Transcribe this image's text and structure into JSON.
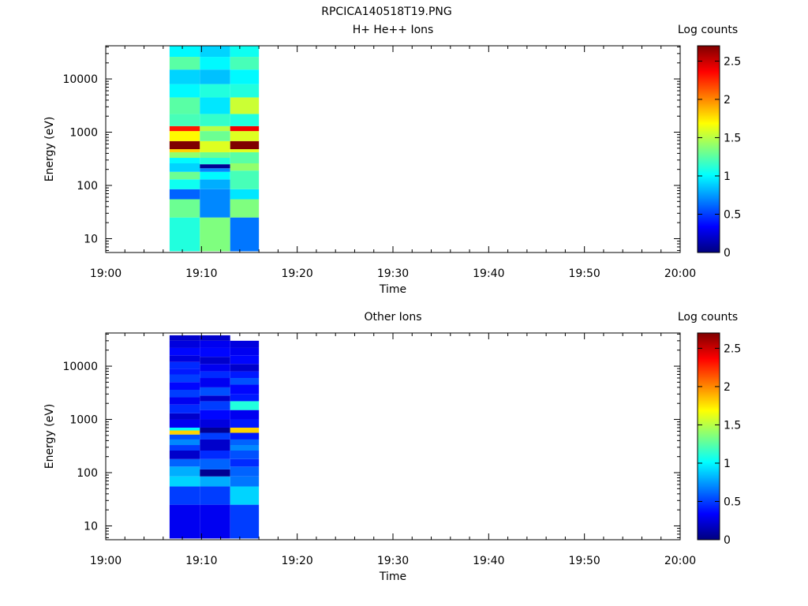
{
  "figure_title": "RPCICA140518T19.PNG",
  "colormap": [
    "#00007f",
    "#0000ff",
    "#007fff",
    "#00ffff",
    "#7fff7f",
    "#ffff00",
    "#ff7f00",
    "#ff0000",
    "#7f0000"
  ],
  "chart_data": [
    {
      "type": "heatmap",
      "title": "H+ He++ Ions",
      "xlabel": "Time",
      "ylabel": "Energy (eV)",
      "xlim": [
        "19:00",
        "20:00"
      ],
      "xticks": [
        "19:00",
        "19:10",
        "19:20",
        "19:30",
        "19:40",
        "19:50",
        "20:00"
      ],
      "ylim": [
        5.5,
        42000
      ],
      "yscale": "log",
      "yticks": [
        10,
        100,
        1000,
        10000
      ],
      "ytick_labels": [
        "10",
        "100",
        "1000",
        "10000"
      ],
      "colorbar": {
        "label": "Log counts",
        "range": [
          0,
          2.7
        ],
        "ticks": [
          "0",
          "0.5",
          "1",
          "1.5",
          "2",
          "2.5"
        ]
      },
      "columns": [
        {
          "t_start": "19:06:40",
          "t_end": "19:09:50",
          "bins": [
            [
              [
                5.8,
                25
              ],
              1.1
            ],
            [
              [
                25,
                55
              ],
              1.3
            ],
            [
              [
                55,
                85
              ],
              0.6
            ],
            [
              [
                85,
                130
              ],
              1.05
            ],
            [
              [
                130,
                180
              ],
              1.3
            ],
            [
              [
                180,
                260
              ],
              0.9
            ],
            [
              [
                260,
                330
              ],
              1.0
            ],
            [
              [
                330,
                420
              ],
              1.4
            ],
            [
              [
                420,
                480
              ],
              1.8
            ],
            [
              [
                480,
                680
              ],
              2.7
            ],
            [
              [
                680,
                1050
              ],
              1.7
            ],
            [
              [
                1050,
                1300
              ],
              2.3
            ],
            [
              [
                1300,
                2200
              ],
              1.2
            ],
            [
              [
                2200,
                4500
              ],
              1.25
            ],
            [
              [
                4500,
                8000
              ],
              1.0
            ],
            [
              [
                8000,
                15000
              ],
              0.9
            ],
            [
              [
                15000,
                26000
              ],
              1.25
            ],
            [
              [
                26000,
                42000
              ],
              1.0
            ]
          ]
        },
        {
          "t_start": "19:09:50",
          "t_end": "19:13:00",
          "bins": [
            [
              [
                5.8,
                25
              ],
              1.35
            ],
            [
              [
                25,
                85
              ],
              0.7
            ],
            [
              [
                85,
                130
              ],
              0.8
            ],
            [
              [
                130,
                180
              ],
              1.0
            ],
            [
              [
                180,
                210
              ],
              0.7
            ],
            [
              [
                210,
                250
              ],
              0.05
            ],
            [
              [
                250,
                330
              ],
              1.1
            ],
            [
              [
                330,
                420
              ],
              1.3
            ],
            [
              [
                420,
                680
              ],
              1.6
            ],
            [
              [
                680,
                1050
              ],
              1.3
            ],
            [
              [
                1050,
                1300
              ],
              1.5
            ],
            [
              [
                1300,
                2200
              ],
              1.15
            ],
            [
              [
                2200,
                4500
              ],
              0.95
            ],
            [
              [
                4500,
                8000
              ],
              1.1
            ],
            [
              [
                8000,
                15000
              ],
              0.85
            ],
            [
              [
                15000,
                26000
              ],
              1.0
            ],
            [
              [
                26000,
                42000
              ],
              0.9
            ]
          ]
        },
        {
          "t_start": "19:13:00",
          "t_end": "19:16:00",
          "bins": [
            [
              [
                5.8,
                25
              ],
              0.65
            ],
            [
              [
                25,
                55
              ],
              1.35
            ],
            [
              [
                55,
                85
              ],
              0.95
            ],
            [
              [
                85,
                190
              ],
              1.2
            ],
            [
              [
                190,
                260
              ],
              1.4
            ],
            [
              [
                260,
                420
              ],
              1.25
            ],
            [
              [
                420,
                480
              ],
              1.6
            ],
            [
              [
                480,
                680
              ],
              2.7
            ],
            [
              [
                680,
                1050
              ],
              1.6
            ],
            [
              [
                1050,
                1300
              ],
              2.4
            ],
            [
              [
                1300,
                2200
              ],
              1.1
            ],
            [
              [
                2200,
                4500
              ],
              1.55
            ],
            [
              [
                4500,
                8000
              ],
              1.1
            ],
            [
              [
                8000,
                15000
              ],
              1.0
            ],
            [
              [
                15000,
                26000
              ],
              1.2
            ],
            [
              [
                26000,
                42000
              ],
              1.05
            ]
          ]
        }
      ]
    },
    {
      "type": "heatmap",
      "title": "Other Ions",
      "xlabel": "Time",
      "ylabel": "Energy (eV)",
      "xlim": [
        "19:00",
        "20:00"
      ],
      "xticks": [
        "19:00",
        "19:10",
        "19:20",
        "19:30",
        "19:40",
        "19:50",
        "20:00"
      ],
      "ylim": [
        5.5,
        42000
      ],
      "yscale": "log",
      "yticks": [
        10,
        100,
        1000,
        10000
      ],
      "ytick_labels": [
        "10",
        "100",
        "1000",
        "10000"
      ],
      "colorbar": {
        "label": "Log counts",
        "range": [
          0,
          2.7
        ],
        "ticks": [
          "0",
          "0.5",
          "1",
          "1.5",
          "2",
          "2.5"
        ]
      },
      "columns": [
        {
          "t_start": "19:06:40",
          "t_end": "19:09:50",
          "bins": [
            [
              [
                5.8,
                25
              ],
              0.3
            ],
            [
              [
                25,
                55
              ],
              0.5
            ],
            [
              [
                55,
                85
              ],
              0.9
            ],
            [
              [
                85,
                130
              ],
              0.8
            ],
            [
              [
                130,
                180
              ],
              0.6
            ],
            [
              [
                180,
                260
              ],
              0.2
            ],
            [
              [
                260,
                330
              ],
              0.5
            ],
            [
              [
                330,
                420
              ],
              0.7
            ],
            [
              [
                420,
                520
              ],
              0.55
            ],
            [
              [
                520,
                620
              ],
              1.8
            ],
            [
              [
                620,
                700
              ],
              1.0
            ],
            [
              [
                700,
                1000
              ],
              0.3
            ],
            [
              [
                1000,
                1300
              ],
              0.2
            ],
            [
              [
                1300,
                1900
              ],
              0.45
            ],
            [
              [
                1900,
                2600
              ],
              0.3
            ],
            [
              [
                2600,
                3600
              ],
              0.5
            ],
            [
              [
                3600,
                5000
              ],
              0.35
            ],
            [
              [
                5000,
                7000
              ],
              0.5
            ],
            [
              [
                7000,
                9000
              ],
              0.4
            ],
            [
              [
                9000,
                12000
              ],
              0.45
            ],
            [
              [
                12000,
                16000
              ],
              0.25
            ],
            [
              [
                16000,
                22000
              ],
              0.35
            ],
            [
              [
                22000,
                30000
              ],
              0.25
            ],
            [
              [
                30000,
                38000
              ],
              0.2
            ]
          ]
        },
        {
          "t_start": "19:09:50",
          "t_end": "19:13:00",
          "bins": [
            [
              [
                5.8,
                25
              ],
              0.3
            ],
            [
              [
                25,
                55
              ],
              0.5
            ],
            [
              [
                55,
                85
              ],
              0.8
            ],
            [
              [
                85,
                115
              ],
              0.05
            ],
            [
              [
                115,
                180
              ],
              0.6
            ],
            [
              [
                180,
                260
              ],
              0.45
            ],
            [
              [
                260,
                420
              ],
              0.2
            ],
            [
              [
                420,
                560
              ],
              0.5
            ],
            [
              [
                560,
                700
              ],
              0.05
            ],
            [
              [
                700,
                1000
              ],
              0.25
            ],
            [
              [
                1000,
                1500
              ],
              0.35
            ],
            [
              [
                1500,
                2200
              ],
              0.5
            ],
            [
              [
                2200,
                2800
              ],
              0.2
            ],
            [
              [
                2800,
                4000
              ],
              0.55
            ],
            [
              [
                4000,
                6000
              ],
              0.3
            ],
            [
              [
                6000,
                8000
              ],
              0.45
            ],
            [
              [
                8000,
                11000
              ],
              0.3
            ],
            [
              [
                11000,
                15000
              ],
              0.2
            ],
            [
              [
                15000,
                22000
              ],
              0.35
            ],
            [
              [
                22000,
                30000
              ],
              0.3
            ],
            [
              [
                30000,
                38000
              ],
              0.2
            ]
          ]
        },
        {
          "t_start": "19:13:00",
          "t_end": "19:16:00",
          "bins": [
            [
              [
                5.8,
                25
              ],
              0.5
            ],
            [
              [
                25,
                55
              ],
              0.9
            ],
            [
              [
                55,
                85
              ],
              0.65
            ],
            [
              [
                85,
                130
              ],
              0.6
            ],
            [
              [
                130,
                180
              ],
              0.45
            ],
            [
              [
                180,
                260
              ],
              0.55
            ],
            [
              [
                260,
                330
              ],
              0.7
            ],
            [
              [
                330,
                420
              ],
              0.6
            ],
            [
              [
                420,
                560
              ],
              0.4
            ],
            [
              [
                560,
                700
              ],
              1.8
            ],
            [
              [
                700,
                1000
              ],
              0.4
            ],
            [
              [
                1000,
                1500
              ],
              0.3
            ],
            [
              [
                1500,
                2200
              ],
              1.1
            ],
            [
              [
                2200,
                3000
              ],
              0.4
            ],
            [
              [
                3000,
                4500
              ],
              0.35
            ],
            [
              [
                4500,
                6000
              ],
              0.55
            ],
            [
              [
                6000,
                8000
              ],
              0.4
            ],
            [
              [
                8000,
                11000
              ],
              0.2
            ],
            [
              [
                11000,
                16000
              ],
              0.35
            ],
            [
              [
                16000,
                22000
              ],
              0.3
            ],
            [
              [
                22000,
                30000
              ],
              0.25
            ]
          ]
        }
      ]
    }
  ]
}
